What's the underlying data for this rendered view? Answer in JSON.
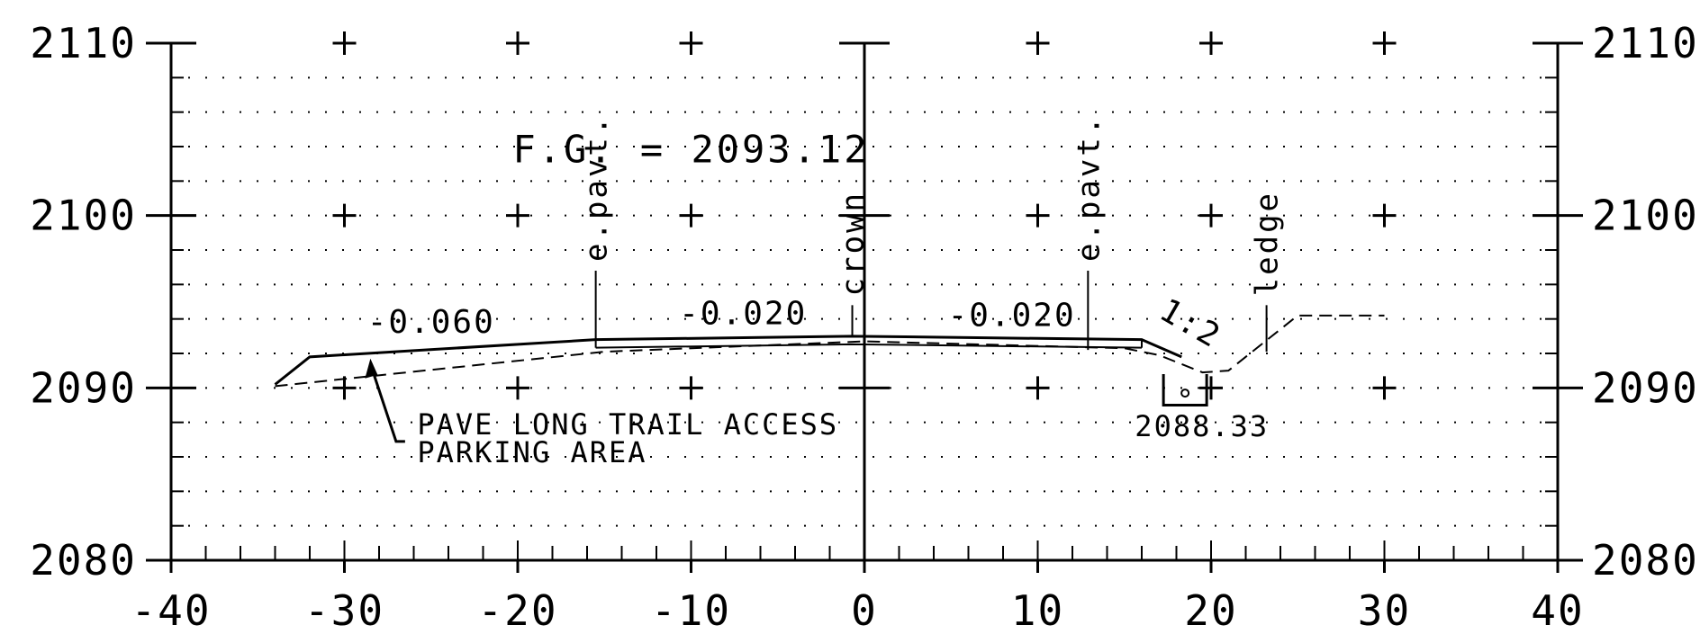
{
  "chart_data": {
    "type": "cross-section",
    "xlim": [
      -40,
      40
    ],
    "ylim": [
      2080,
      2110
    ],
    "x_ticks": [
      -40,
      -30,
      -20,
      -10,
      0,
      10,
      20,
      30,
      40
    ],
    "x_tick_labels": [
      "-40",
      "-30",
      "-20",
      "-10",
      "0",
      "10",
      "20",
      "30",
      "40"
    ],
    "y_ticks": [
      2080,
      2090,
      2100,
      2110
    ],
    "y_tick_labels": [
      "2080",
      "2090",
      "2100",
      "2110"
    ],
    "grid": "dotted 2-unit grid with + markers at major intersections",
    "finished_grade_label": "F.G. = 2093.12",
    "proposed_section": [
      {
        "x": -34,
        "y": 2090.2
      },
      {
        "x": -32,
        "y": 2091.8
      },
      {
        "x": -15.5,
        "y": 2092.8
      },
      {
        "x": -0.7,
        "y": 2093.0
      },
      {
        "x": 16,
        "y": 2092.8
      },
      {
        "x": 18.3,
        "y": 2091.8
      }
    ],
    "existing_ground": [
      {
        "x": -34,
        "y": 2090.1
      },
      {
        "x": -15,
        "y": 2092.1
      },
      {
        "x": 0,
        "y": 2092.7
      },
      {
        "x": 15,
        "y": 2092.3
      },
      {
        "x": 17,
        "y": 2091.9
      },
      {
        "x": 19.5,
        "y": 2090.9
      },
      {
        "x": 21,
        "y": 2091.0
      },
      {
        "x": 25,
        "y": 2094.2
      },
      {
        "x": 30,
        "y": 2094.2
      }
    ],
    "slope_labels": [
      {
        "text": "-0.060",
        "x": -25,
        "y": 2093.2
      },
      {
        "text": "-0.020",
        "x": -7,
        "y": 2093.7
      },
      {
        "text": "-0.020",
        "x": 8.5,
        "y": 2093.6
      },
      {
        "text": "1:2",
        "x": 18.5,
        "y": 2093.2
      }
    ],
    "vertical_labels": [
      {
        "text": "e.pavt.",
        "x": -15.5,
        "top": 2104,
        "bottom": 2092.8
      },
      {
        "text": "crown",
        "x": -0.7,
        "top": 2102,
        "bottom": 2093.0
      },
      {
        "text": "e.pavt.",
        "x": 12.9,
        "top": 2104,
        "bottom": 2092.2
      },
      {
        "text": "ledge",
        "x": 23.2,
        "top": 2102,
        "bottom": 2092.1
      }
    ],
    "annotations": [
      {
        "text": "PAVE LONG TRAIL ACCESS",
        "x": -25.8,
        "y": 2087.3
      },
      {
        "text": "PARKING AREA",
        "x": -25.8,
        "y": 2085.7
      }
    ],
    "pointer": {
      "from_x": -26.5,
      "from_y": 2087.0,
      "to_x": -28.5,
      "to_y": 2091.7
    },
    "subgrade_marker": {
      "x": 18.5,
      "label": "2088.33",
      "label_x": 15.6,
      "label_y": 2087.2
    }
  }
}
